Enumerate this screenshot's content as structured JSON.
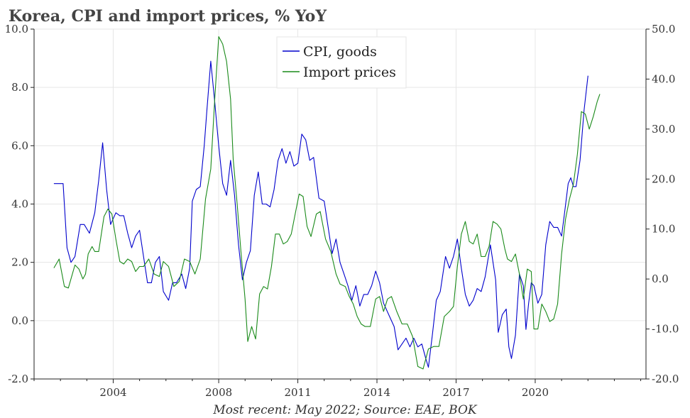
{
  "colors": {
    "cpi": "#0000cc",
    "import": "#1a8a1a",
    "grid": "#e6e6e6",
    "title": "#444444"
  },
  "chart_data": {
    "type": "line",
    "title": "Korea, CPI and import prices, % YoY",
    "source": "Most recent: May 2022; Source: EAE, BOK",
    "x_ticks": [
      "2004",
      "2008",
      "2011",
      "2014",
      "2017",
      "2020"
    ],
    "x_tick_years": [
      2004,
      2008,
      2011,
      2014,
      2017,
      2020
    ],
    "xlim": [
      2001.0,
      2024.2
    ],
    "y_left": {
      "ylim": [
        -2.0,
        10.0
      ],
      "ticks": [
        "-2.0",
        "0.0",
        "2.0",
        "4.0",
        "6.0",
        "8.0",
        "10.0"
      ],
      "tick_values": [
        -2,
        0,
        2,
        4,
        6,
        8,
        10
      ]
    },
    "y_right": {
      "ylim": [
        -20.0,
        50.0
      ],
      "ticks": [
        "-20.0",
        "-10.0",
        "0.0",
        "10.0",
        "20.0",
        "30.0",
        "40.0",
        "50.0"
      ],
      "tick_values": [
        -20,
        -10,
        0,
        10,
        20,
        30,
        40,
        50
      ]
    },
    "grid": true,
    "legend_position": "top-center",
    "series": [
      {
        "name": "CPI, goods",
        "axis": "left",
        "color": "#0000cc",
        "points": [
          [
            2001.75,
            4.7
          ],
          [
            2002.1,
            4.7
          ],
          [
            2002.25,
            2.5
          ],
          [
            2002.4,
            2.0
          ],
          [
            2002.55,
            2.2
          ],
          [
            2002.75,
            3.3
          ],
          [
            2002.9,
            3.3
          ],
          [
            2003.1,
            3.0
          ],
          [
            2003.3,
            3.7
          ],
          [
            2003.45,
            4.8
          ],
          [
            2003.6,
            6.1
          ],
          [
            2003.75,
            4.5
          ],
          [
            2003.9,
            3.3
          ],
          [
            2004.1,
            3.7
          ],
          [
            2004.25,
            3.6
          ],
          [
            2004.4,
            3.6
          ],
          [
            2004.55,
            3.0
          ],
          [
            2004.7,
            2.5
          ],
          [
            2004.85,
            2.9
          ],
          [
            2005.0,
            3.1
          ],
          [
            2005.15,
            2.2
          ],
          [
            2005.3,
            1.3
          ],
          [
            2005.45,
            1.3
          ],
          [
            2005.6,
            2.0
          ],
          [
            2005.75,
            2.2
          ],
          [
            2005.9,
            1.0
          ],
          [
            2006.1,
            0.7
          ],
          [
            2006.25,
            1.3
          ],
          [
            2006.4,
            1.3
          ],
          [
            2006.6,
            1.6
          ],
          [
            2006.75,
            1.1
          ],
          [
            2006.9,
            1.8
          ],
          [
            2007.0,
            4.1
          ],
          [
            2007.15,
            4.5
          ],
          [
            2007.3,
            4.6
          ],
          [
            2007.45,
            6.0
          ],
          [
            2007.55,
            7.2
          ],
          [
            2007.7,
            8.9
          ],
          [
            2007.85,
            7.5
          ],
          [
            2008.0,
            6.0
          ],
          [
            2008.15,
            4.7
          ],
          [
            2008.3,
            4.3
          ],
          [
            2008.45,
            5.5
          ],
          [
            2008.6,
            4.3
          ],
          [
            2008.75,
            2.6
          ],
          [
            2008.9,
            1.4
          ],
          [
            2009.05,
            2.0
          ],
          [
            2009.2,
            2.4
          ],
          [
            2009.35,
            4.3
          ],
          [
            2009.5,
            5.1
          ],
          [
            2009.65,
            4.0
          ],
          [
            2009.8,
            4.0
          ],
          [
            2009.95,
            3.9
          ],
          [
            2010.1,
            4.5
          ],
          [
            2010.25,
            5.5
          ],
          [
            2010.4,
            5.9
          ],
          [
            2010.55,
            5.4
          ],
          [
            2010.7,
            5.8
          ],
          [
            2010.85,
            5.3
          ],
          [
            2011.0,
            5.4
          ],
          [
            2011.15,
            6.4
          ],
          [
            2011.3,
            6.2
          ],
          [
            2011.45,
            5.5
          ],
          [
            2011.6,
            5.6
          ],
          [
            2011.8,
            4.2
          ],
          [
            2012.0,
            4.1
          ],
          [
            2012.15,
            3.2
          ],
          [
            2012.3,
            2.3
          ],
          [
            2012.45,
            2.8
          ],
          [
            2012.6,
            2.0
          ],
          [
            2012.75,
            1.6
          ],
          [
            2012.9,
            1.2
          ],
          [
            2013.05,
            0.7
          ],
          [
            2013.2,
            1.2
          ],
          [
            2013.35,
            0.5
          ],
          [
            2013.5,
            0.9
          ],
          [
            2013.65,
            0.9
          ],
          [
            2013.8,
            1.2
          ],
          [
            2013.95,
            1.7
          ],
          [
            2014.1,
            1.3
          ],
          [
            2014.25,
            0.6
          ],
          [
            2014.45,
            0.2
          ],
          [
            2014.65,
            -0.2
          ],
          [
            2014.8,
            -1.0
          ],
          [
            2014.95,
            -0.8
          ],
          [
            2015.1,
            -0.6
          ],
          [
            2015.25,
            -0.9
          ],
          [
            2015.4,
            -0.6
          ],
          [
            2015.55,
            -0.9
          ],
          [
            2015.7,
            -0.8
          ],
          [
            2015.85,
            -1.3
          ],
          [
            2015.95,
            -1.6
          ],
          [
            2016.1,
            -0.5
          ],
          [
            2016.25,
            0.7
          ],
          [
            2016.4,
            1.0
          ],
          [
            2016.6,
            2.2
          ],
          [
            2016.75,
            1.8
          ],
          [
            2016.9,
            2.2
          ],
          [
            2017.05,
            2.8
          ],
          [
            2017.2,
            1.8
          ],
          [
            2017.35,
            0.9
          ],
          [
            2017.5,
            0.5
          ],
          [
            2017.65,
            0.7
          ],
          [
            2017.8,
            1.1
          ],
          [
            2017.95,
            1.0
          ],
          [
            2018.1,
            1.5
          ],
          [
            2018.3,
            2.6
          ],
          [
            2018.5,
            1.4
          ],
          [
            2018.6,
            -0.4
          ],
          [
            2018.75,
            0.2
          ],
          [
            2018.9,
            0.4
          ],
          [
            2019.0,
            -0.9
          ],
          [
            2019.1,
            -1.3
          ],
          [
            2019.25,
            -0.5
          ],
          [
            2019.4,
            1.6
          ],
          [
            2019.55,
            1.2
          ],
          [
            2019.65,
            -0.3
          ],
          [
            2019.75,
            0.6
          ],
          [
            2019.85,
            1.3
          ],
          [
            2019.95,
            1.2
          ],
          [
            2020.1,
            0.6
          ],
          [
            2020.25,
            0.9
          ],
          [
            2020.4,
            2.6
          ],
          [
            2020.55,
            3.4
          ],
          [
            2020.7,
            3.2
          ],
          [
            2020.85,
            3.2
          ],
          [
            2021.0,
            2.9
          ],
          [
            2021.1,
            3.6
          ],
          [
            2021.25,
            4.7
          ],
          [
            2021.35,
            4.9
          ],
          [
            2021.45,
            4.6
          ],
          [
            2021.55,
            4.6
          ],
          [
            2021.7,
            5.5
          ],
          [
            2021.85,
            7.2
          ],
          [
            2022.0,
            8.4
          ]
        ]
      },
      {
        "name": "Import prices",
        "axis": "right",
        "color": "#1a8a1a",
        "points": [
          [
            2001.75,
            2.2
          ],
          [
            2001.95,
            4.0
          ],
          [
            2002.15,
            -1.5
          ],
          [
            2002.3,
            -1.8
          ],
          [
            2002.55,
            2.8
          ],
          [
            2002.7,
            2.0
          ],
          [
            2002.85,
            0.0
          ],
          [
            2002.95,
            1.0
          ],
          [
            2003.05,
            5.0
          ],
          [
            2003.2,
            6.5
          ],
          [
            2003.3,
            5.5
          ],
          [
            2003.45,
            5.5
          ],
          [
            2003.65,
            12.5
          ],
          [
            2003.8,
            14.0
          ],
          [
            2003.95,
            13.0
          ],
          [
            2004.1,
            8.0
          ],
          [
            2004.25,
            3.5
          ],
          [
            2004.4,
            3.0
          ],
          [
            2004.55,
            4.0
          ],
          [
            2004.7,
            3.5
          ],
          [
            2004.85,
            1.5
          ],
          [
            2005.0,
            2.5
          ],
          [
            2005.15,
            2.5
          ],
          [
            2005.35,
            4.0
          ],
          [
            2005.55,
            1.0
          ],
          [
            2005.75,
            0.5
          ],
          [
            2005.9,
            3.5
          ],
          [
            2006.1,
            2.5
          ],
          [
            2006.3,
            -1.5
          ],
          [
            2006.5,
            -0.5
          ],
          [
            2006.7,
            4.0
          ],
          [
            2006.9,
            3.5
          ],
          [
            2007.1,
            1.0
          ],
          [
            2007.3,
            4.0
          ],
          [
            2007.5,
            16.0
          ],
          [
            2007.7,
            22.0
          ],
          [
            2007.85,
            36.0
          ],
          [
            2008.0,
            48.5
          ],
          [
            2008.15,
            47.0
          ],
          [
            2008.3,
            43.5
          ],
          [
            2008.45,
            36.0
          ],
          [
            2008.55,
            24.0
          ],
          [
            2008.7,
            15.0
          ],
          [
            2008.85,
            5.0
          ],
          [
            2009.0,
            -4.0
          ],
          [
            2009.1,
            -12.5
          ],
          [
            2009.25,
            -9.5
          ],
          [
            2009.4,
            -12.0
          ],
          [
            2009.55,
            -3.0
          ],
          [
            2009.7,
            -1.5
          ],
          [
            2009.85,
            -2.0
          ],
          [
            2010.0,
            2.5
          ],
          [
            2010.15,
            9.0
          ],
          [
            2010.3,
            9.0
          ],
          [
            2010.45,
            7.0
          ],
          [
            2010.6,
            7.5
          ],
          [
            2010.75,
            9.0
          ],
          [
            2010.9,
            13.0
          ],
          [
            2011.05,
            17.0
          ],
          [
            2011.2,
            16.5
          ],
          [
            2011.35,
            10.5
          ],
          [
            2011.5,
            8.5
          ],
          [
            2011.7,
            13.0
          ],
          [
            2011.85,
            13.5
          ],
          [
            2012.05,
            8.0
          ],
          [
            2012.25,
            5.5
          ],
          [
            2012.45,
            1.0
          ],
          [
            2012.6,
            -1.0
          ],
          [
            2012.8,
            -1.5
          ],
          [
            2012.95,
            -3.5
          ],
          [
            2013.1,
            -5.0
          ],
          [
            2013.25,
            -7.5
          ],
          [
            2013.4,
            -9.0
          ],
          [
            2013.55,
            -9.5
          ],
          [
            2013.75,
            -9.5
          ],
          [
            2013.95,
            -4.0
          ],
          [
            2014.1,
            -3.5
          ],
          [
            2014.25,
            -6.5
          ],
          [
            2014.4,
            -4.0
          ],
          [
            2014.55,
            -3.5
          ],
          [
            2014.75,
            -6.5
          ],
          [
            2014.95,
            -9.0
          ],
          [
            2015.15,
            -9.0
          ],
          [
            2015.35,
            -11.5
          ],
          [
            2015.55,
            -17.5
          ],
          [
            2015.75,
            -18.0
          ],
          [
            2015.95,
            -14.0
          ],
          [
            2016.15,
            -13.5
          ],
          [
            2016.35,
            -13.5
          ],
          [
            2016.55,
            -7.5
          ],
          [
            2016.75,
            -6.5
          ],
          [
            2016.9,
            -5.5
          ],
          [
            2017.05,
            2.5
          ],
          [
            2017.2,
            9.0
          ],
          [
            2017.35,
            11.5
          ],
          [
            2017.5,
            7.5
          ],
          [
            2017.65,
            7.0
          ],
          [
            2017.8,
            9.0
          ],
          [
            2017.95,
            4.5
          ],
          [
            2018.1,
            4.5
          ],
          [
            2018.25,
            6.5
          ],
          [
            2018.4,
            11.5
          ],
          [
            2018.55,
            11.0
          ],
          [
            2018.7,
            10.0
          ],
          [
            2018.85,
            6.0
          ],
          [
            2018.95,
            4.0
          ],
          [
            2019.1,
            3.5
          ],
          [
            2019.25,
            5.0
          ],
          [
            2019.4,
            1.0
          ],
          [
            2019.55,
            -4.0
          ],
          [
            2019.7,
            2.0
          ],
          [
            2019.85,
            1.5
          ],
          [
            2019.95,
            -10.0
          ],
          [
            2020.1,
            -10.0
          ],
          [
            2020.25,
            -5.0
          ],
          [
            2020.4,
            -6.5
          ],
          [
            2020.55,
            -8.5
          ],
          [
            2020.7,
            -8.0
          ],
          [
            2020.85,
            -5.0
          ],
          [
            2021.0,
            5.0
          ],
          [
            2021.15,
            12.0
          ],
          [
            2021.3,
            16.0
          ],
          [
            2021.45,
            19.0
          ],
          [
            2021.6,
            25.0
          ],
          [
            2021.75,
            33.5
          ],
          [
            2021.9,
            33.0
          ],
          [
            2022.05,
            30.0
          ],
          [
            2022.2,
            32.5
          ],
          [
            2022.35,
            35.5
          ],
          [
            2022.45,
            37.0
          ]
        ]
      }
    ]
  }
}
